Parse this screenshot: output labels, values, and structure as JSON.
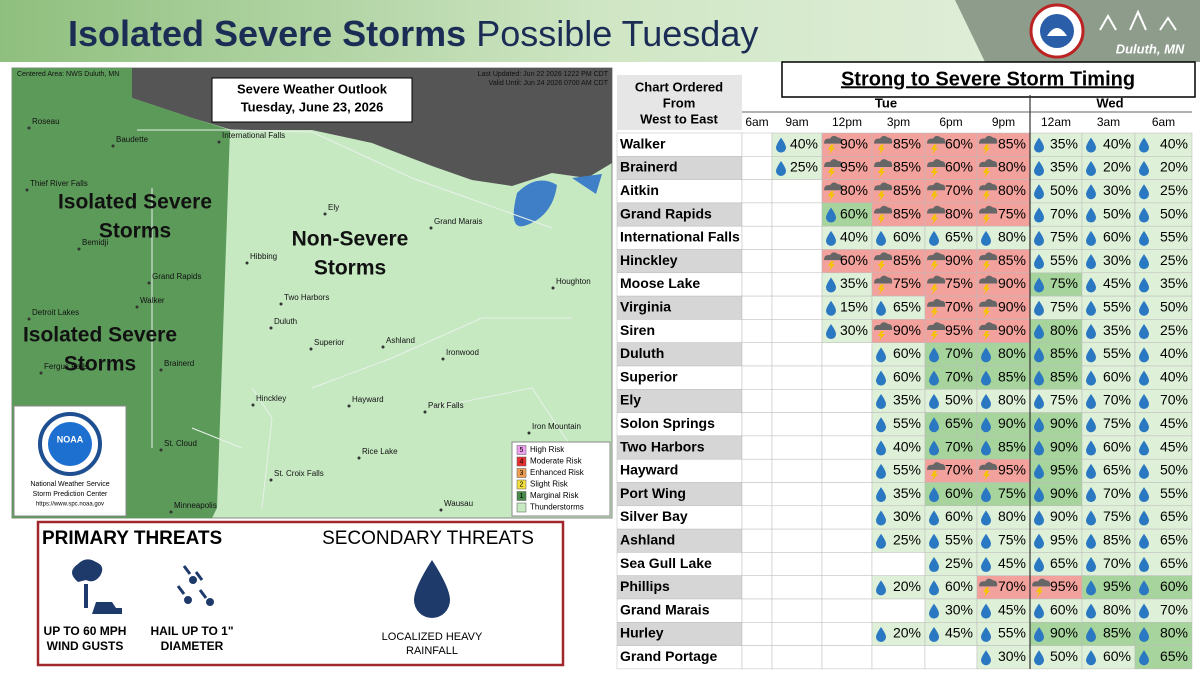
{
  "header": {
    "title_bold": "Isolated Severe Storms",
    "title_rest": "Possible Tuesday",
    "office": "Duluth, MN"
  },
  "map": {
    "centered": "Centered Area: NWS Duluth, MN",
    "outlook_title": "Severe Weather Outlook",
    "outlook_date": "Tuesday, June 23, 2026",
    "updated": "Last Updated: Jun 22 2026 1222 PM CDT",
    "valid": "Valid Until: Jun 24 2026 0700 AM CDT",
    "regions": [
      [
        "Isolated Severe",
        "Storms"
      ],
      [
        "Non-Severe",
        "Storms"
      ],
      [
        "Isolated Severe",
        "Storms"
      ]
    ],
    "cities": [
      "Roseau",
      "Baudette",
      "International Falls",
      "Thief River Falls",
      "Bemidji",
      "Grand Rapids",
      "Walker",
      "Detroit Lakes",
      "Fergus Falls",
      "Brainerd",
      "Ely",
      "Grand Marais",
      "Hibbing",
      "Two Harbors",
      "Duluth",
      "Superior",
      "Ashland",
      "Ironwood",
      "Houghton",
      "Hayward",
      "Park Falls",
      "Iron Mountain",
      "Hinckley",
      "St. Cloud",
      "Rice Lake",
      "St. Croix Falls",
      "Minneapolis",
      "Wausau"
    ],
    "legend": [
      {
        "num": "5",
        "label": "High Risk"
      },
      {
        "num": "4",
        "label": "Moderate Risk"
      },
      {
        "num": "3",
        "label": "Enhanced Risk"
      },
      {
        "num": "2",
        "label": "Slight Risk"
      },
      {
        "num": "1",
        "label": "Marginal Risk"
      },
      {
        "label": "Thunderstorms"
      }
    ],
    "noaa": "NOAA",
    "credit": [
      "National Weather Service",
      "Storm Prediction Center",
      "https://www.spc.noaa.gov"
    ]
  },
  "threats": {
    "primary": "PRIMARY THREATS",
    "secondary": "SECONDARY THREATS",
    "items": [
      [
        "UP TO 60 MPH",
        "WIND GUSTS"
      ],
      [
        "HAIL UP TO 1\"",
        "DIAMETER"
      ],
      [
        "LOCALIZED HEAVY",
        "RAINFALL"
      ]
    ]
  },
  "table": {
    "title": "Strong to Severe Storm Timing",
    "order_note": [
      "Chart Ordered",
      "From",
      "West to East"
    ],
    "days": [
      "Tue",
      "Wed"
    ],
    "times": [
      "6am",
      "9am",
      "12pm",
      "3pm",
      "6pm",
      "9pm",
      "12am",
      "3am",
      "6am"
    ],
    "rows": [
      {
        "name": "Walker",
        "cells": [
          null,
          {
            "t": "40%",
            "k": "drop"
          },
          {
            "t": "90%",
            "k": "storm"
          },
          {
            "t": "85%",
            "k": "storm"
          },
          {
            "t": "60%",
            "k": "storm"
          },
          {
            "t": "85%",
            "k": "storm"
          },
          {
            "t": "35%",
            "k": "drop"
          },
          {
            "t": "40%",
            "k": "drop"
          },
          {
            "t": "40%",
            "k": "drop"
          }
        ]
      },
      {
        "name": "Brainerd",
        "cells": [
          null,
          {
            "t": "25%",
            "k": "drop"
          },
          {
            "t": "95%",
            "k": "storm"
          },
          {
            "t": "85%",
            "k": "storm"
          },
          {
            "t": "60%",
            "k": "storm"
          },
          {
            "t": "80%",
            "k": "storm"
          },
          {
            "t": "35%",
            "k": "drop"
          },
          {
            "t": "20%",
            "k": "drop"
          },
          {
            "t": "20%",
            "k": "drop"
          }
        ]
      },
      {
        "name": "Aitkin",
        "cells": [
          null,
          null,
          {
            "t": "80%",
            "k": "storm"
          },
          {
            "t": "85%",
            "k": "storm"
          },
          {
            "t": "70%",
            "k": "storm"
          },
          {
            "t": "80%",
            "k": "storm"
          },
          {
            "t": "50%",
            "k": "drop"
          },
          {
            "t": "30%",
            "k": "drop"
          },
          {
            "t": "25%",
            "k": "drop"
          }
        ]
      },
      {
        "name": "Grand Rapids",
        "cells": [
          null,
          null,
          {
            "t": "60%",
            "k": "drop-dark"
          },
          {
            "t": "85%",
            "k": "storm"
          },
          {
            "t": "80%",
            "k": "storm"
          },
          {
            "t": "75%",
            "k": "storm"
          },
          {
            "t": "70%",
            "k": "drop"
          },
          {
            "t": "50%",
            "k": "drop"
          },
          {
            "t": "50%",
            "k": "drop"
          }
        ]
      },
      {
        "name": "International Falls",
        "cells": [
          null,
          null,
          {
            "t": "40%",
            "k": "drop"
          },
          {
            "t": "60%",
            "k": "drop"
          },
          {
            "t": "65%",
            "k": "drop"
          },
          {
            "t": "80%",
            "k": "drop"
          },
          {
            "t": "75%",
            "k": "drop"
          },
          {
            "t": "60%",
            "k": "drop"
          },
          {
            "t": "55%",
            "k": "drop"
          }
        ]
      },
      {
        "name": "Hinckley",
        "cells": [
          null,
          null,
          {
            "t": "60%",
            "k": "storm"
          },
          {
            "t": "85%",
            "k": "storm"
          },
          {
            "t": "90%",
            "k": "storm"
          },
          {
            "t": "85%",
            "k": "storm"
          },
          {
            "t": "55%",
            "k": "drop"
          },
          {
            "t": "30%",
            "k": "drop"
          },
          {
            "t": "25%",
            "k": "drop"
          }
        ]
      },
      {
        "name": "Moose Lake",
        "cells": [
          null,
          null,
          {
            "t": "35%",
            "k": "drop"
          },
          {
            "t": "75%",
            "k": "storm"
          },
          {
            "t": "75%",
            "k": "storm"
          },
          {
            "t": "90%",
            "k": "storm"
          },
          {
            "t": "75%",
            "k": "drop-dark"
          },
          {
            "t": "45%",
            "k": "drop"
          },
          {
            "t": "35%",
            "k": "drop"
          }
        ]
      },
      {
        "name": "Virginia",
        "cells": [
          null,
          null,
          {
            "t": "15%",
            "k": "drop"
          },
          {
            "t": "65%",
            "k": "drop"
          },
          {
            "t": "70%",
            "k": "storm"
          },
          {
            "t": "90%",
            "k": "storm"
          },
          {
            "t": "75%",
            "k": "drop"
          },
          {
            "t": "55%",
            "k": "drop"
          },
          {
            "t": "50%",
            "k": "drop"
          }
        ]
      },
      {
        "name": "Siren",
        "cells": [
          null,
          null,
          {
            "t": "30%",
            "k": "drop"
          },
          {
            "t": "90%",
            "k": "storm"
          },
          {
            "t": "95%",
            "k": "storm"
          },
          {
            "t": "90%",
            "k": "storm"
          },
          {
            "t": "80%",
            "k": "drop-dark"
          },
          {
            "t": "35%",
            "k": "drop"
          },
          {
            "t": "25%",
            "k": "drop"
          }
        ]
      },
      {
        "name": "Duluth",
        "cells": [
          null,
          null,
          null,
          {
            "t": "60%",
            "k": "drop"
          },
          {
            "t": "70%",
            "k": "drop-dark"
          },
          {
            "t": "80%",
            "k": "drop-dark"
          },
          {
            "t": "85%",
            "k": "drop-dark"
          },
          {
            "t": "55%",
            "k": "drop"
          },
          {
            "t": "40%",
            "k": "drop"
          }
        ]
      },
      {
        "name": "Superior",
        "cells": [
          null,
          null,
          null,
          {
            "t": "60%",
            "k": "drop"
          },
          {
            "t": "70%",
            "k": "drop-dark"
          },
          {
            "t": "85%",
            "k": "drop-dark"
          },
          {
            "t": "85%",
            "k": "drop-dark"
          },
          {
            "t": "60%",
            "k": "drop"
          },
          {
            "t": "40%",
            "k": "drop"
          }
        ]
      },
      {
        "name": "Ely",
        "cells": [
          null,
          null,
          null,
          {
            "t": "35%",
            "k": "drop"
          },
          {
            "t": "50%",
            "k": "drop"
          },
          {
            "t": "80%",
            "k": "drop"
          },
          {
            "t": "75%",
            "k": "drop"
          },
          {
            "t": "70%",
            "k": "drop"
          },
          {
            "t": "70%",
            "k": "drop"
          }
        ]
      },
      {
        "name": "Solon Springs",
        "cells": [
          null,
          null,
          null,
          {
            "t": "55%",
            "k": "drop"
          },
          {
            "t": "65%",
            "k": "drop-dark"
          },
          {
            "t": "90%",
            "k": "drop-dark"
          },
          {
            "t": "90%",
            "k": "drop-dark"
          },
          {
            "t": "75%",
            "k": "drop"
          },
          {
            "t": "45%",
            "k": "drop"
          }
        ]
      },
      {
        "name": "Two Harbors",
        "cells": [
          null,
          null,
          null,
          {
            "t": "40%",
            "k": "drop"
          },
          {
            "t": "70%",
            "k": "drop-dark"
          },
          {
            "t": "85%",
            "k": "drop-dark"
          },
          {
            "t": "90%",
            "k": "drop-dark"
          },
          {
            "t": "60%",
            "k": "drop"
          },
          {
            "t": "45%",
            "k": "drop"
          }
        ]
      },
      {
        "name": "Hayward",
        "cells": [
          null,
          null,
          null,
          {
            "t": "55%",
            "k": "drop"
          },
          {
            "t": "70%",
            "k": "storm"
          },
          {
            "t": "95%",
            "k": "storm"
          },
          {
            "t": "95%",
            "k": "drop-dark"
          },
          {
            "t": "65%",
            "k": "drop"
          },
          {
            "t": "50%",
            "k": "drop"
          }
        ]
      },
      {
        "name": "Port Wing",
        "cells": [
          null,
          null,
          null,
          {
            "t": "35%",
            "k": "drop"
          },
          {
            "t": "60%",
            "k": "drop-dark"
          },
          {
            "t": "75%",
            "k": "drop-dark"
          },
          {
            "t": "90%",
            "k": "drop-dark"
          },
          {
            "t": "70%",
            "k": "drop"
          },
          {
            "t": "55%",
            "k": "drop"
          }
        ]
      },
      {
        "name": "Silver Bay",
        "cells": [
          null,
          null,
          null,
          {
            "t": "30%",
            "k": "drop"
          },
          {
            "t": "60%",
            "k": "drop"
          },
          {
            "t": "80%",
            "k": "drop"
          },
          {
            "t": "90%",
            "k": "drop"
          },
          {
            "t": "75%",
            "k": "drop"
          },
          {
            "t": "65%",
            "k": "drop"
          }
        ]
      },
      {
        "name": "Ashland",
        "cells": [
          null,
          null,
          null,
          {
            "t": "25%",
            "k": "drop"
          },
          {
            "t": "55%",
            "k": "drop"
          },
          {
            "t": "75%",
            "k": "drop"
          },
          {
            "t": "95%",
            "k": "drop"
          },
          {
            "t": "85%",
            "k": "drop"
          },
          {
            "t": "65%",
            "k": "drop"
          }
        ]
      },
      {
        "name": "Sea Gull Lake",
        "cells": [
          null,
          null,
          null,
          null,
          {
            "t": "25%",
            "k": "drop"
          },
          {
            "t": "45%",
            "k": "drop"
          },
          {
            "t": "65%",
            "k": "drop"
          },
          {
            "t": "70%",
            "k": "drop"
          },
          {
            "t": "65%",
            "k": "drop"
          }
        ]
      },
      {
        "name": "Phillips",
        "cells": [
          null,
          null,
          null,
          {
            "t": "20%",
            "k": "drop"
          },
          {
            "t": "60%",
            "k": "drop"
          },
          {
            "t": "70%",
            "k": "storm"
          },
          {
            "t": "95%",
            "k": "storm"
          },
          {
            "t": "95%",
            "k": "drop-dark"
          },
          {
            "t": "60%",
            "k": "drop-dark"
          }
        ]
      },
      {
        "name": "Grand Marais",
        "cells": [
          null,
          null,
          null,
          null,
          {
            "t": "30%",
            "k": "drop"
          },
          {
            "t": "45%",
            "k": "drop"
          },
          {
            "t": "60%",
            "k": "drop"
          },
          {
            "t": "80%",
            "k": "drop"
          },
          {
            "t": "70%",
            "k": "drop"
          }
        ]
      },
      {
        "name": "Hurley",
        "cells": [
          null,
          null,
          null,
          {
            "t": "20%",
            "k": "drop"
          },
          {
            "t": "45%",
            "k": "drop"
          },
          {
            "t": "55%",
            "k": "drop"
          },
          {
            "t": "90%",
            "k": "drop-dark"
          },
          {
            "t": "85%",
            "k": "drop-dark"
          },
          {
            "t": "80%",
            "k": "drop-dark"
          }
        ]
      },
      {
        "name": "Grand Portage",
        "cells": [
          null,
          null,
          null,
          null,
          null,
          {
            "t": "30%",
            "k": "drop"
          },
          {
            "t": "50%",
            "k": "drop"
          },
          {
            "t": "60%",
            "k": "drop"
          },
          {
            "t": "65%",
            "k": "drop-dark"
          }
        ]
      }
    ]
  }
}
